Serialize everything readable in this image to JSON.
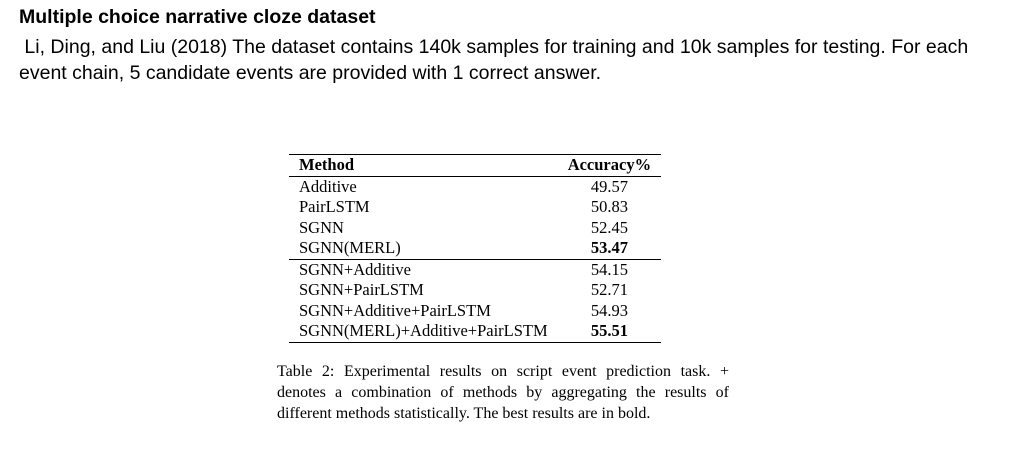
{
  "heading": "Multiple choice narrative cloze dataset",
  "intro": " Li, Ding, and Liu (2018) The dataset contains 140k samples for training and 10k samples for testing. For each event chain, 5 candidate events are provided with 1 correct answer.",
  "table": {
    "headers": [
      "Method",
      "Accuracy%"
    ],
    "group1": [
      {
        "method": "Additive",
        "accuracy": "49.57"
      },
      {
        "method": "PairLSTM",
        "accuracy": "50.83"
      },
      {
        "method": "SGNN",
        "accuracy": "52.45"
      },
      {
        "method": "SGNN(MERL)",
        "accuracy": "53.47",
        "best": true
      }
    ],
    "group2": [
      {
        "method": "SGNN+Additive",
        "accuracy": "54.15"
      },
      {
        "method": "SGNN+PairLSTM",
        "accuracy": "52.71"
      },
      {
        "method": "SGNN+Additive+PairLSTM",
        "accuracy": "54.93"
      },
      {
        "method": "SGNN(MERL)+Additive+PairLSTM",
        "accuracy": "55.51",
        "best": true
      }
    ]
  },
  "caption": "Table 2: Experimental results on script event prediction task. + denotes a combination of methods by aggregating the results of different methods statistically. The best results are in bold."
}
